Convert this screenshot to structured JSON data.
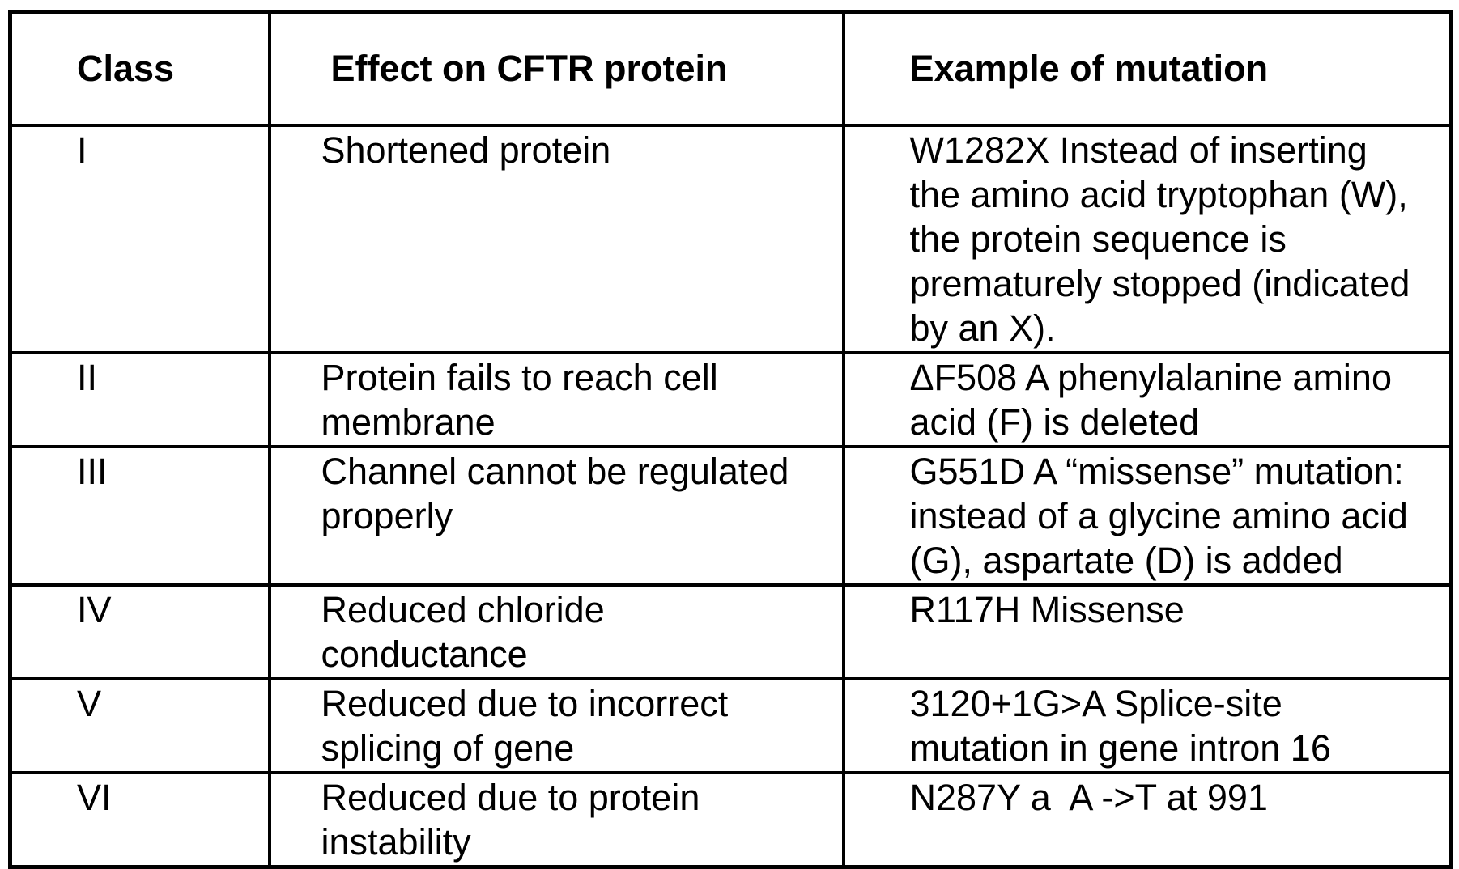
{
  "page": {
    "background_color": "#ffffff",
    "text_color": "#000000",
    "border_color": "#000000"
  },
  "table": {
    "columns": [
      {
        "label": "Class"
      },
      {
        "label": "Effect on CFTR protein"
      },
      {
        "label": "Example of mutation"
      }
    ],
    "rows": [
      {
        "class": "I",
        "effect": "Shortened protein",
        "example": "W1282X Instead of inserting the amino acid tryptophan (W), the protein sequence is prematurely stopped (indicated by an X)."
      },
      {
        "class": "II",
        "effect": "Protein fails to reach cell membrane",
        "example": "ΔF508 A phenylalanine amino acid (F) is deleted"
      },
      {
        "class": "III",
        "effect": "Channel cannot be regulated properly",
        "example": "G551D A “missense” mutation: instead of a glycine amino acid (G), aspartate (D) is added"
      },
      {
        "class": "IV",
        "effect": "Reduced chloride conductance",
        "example": "R117H Missense"
      },
      {
        "class": "V",
        "effect": "Reduced due to incorrect splicing of gene",
        "example": "3120+1G>A Splice-site mutation in gene intron 16"
      },
      {
        "class": "VI",
        "effect": "Reduced due to protein instability",
        "example": "N287Y a  A ->T at 991"
      }
    ]
  }
}
